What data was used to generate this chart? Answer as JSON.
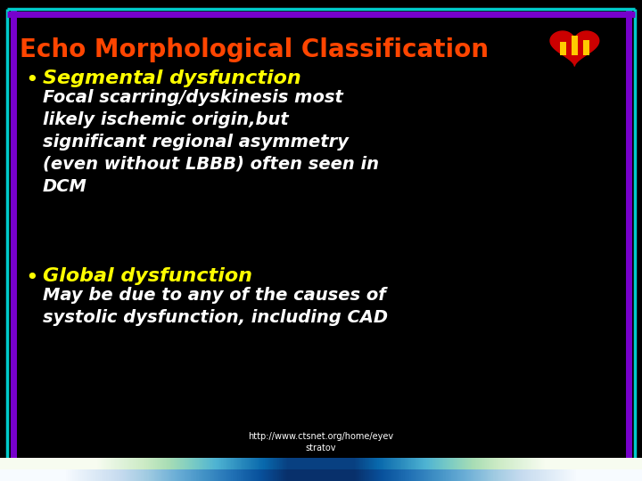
{
  "background_color": "#000000",
  "title": "Echo Morphological Classification",
  "title_color": "#FF4500",
  "title_fontsize": 20,
  "bullet_color": "#FFFF00",
  "bullet1": "Segmental dysfunction",
  "bullet1_fontsize": 16,
  "text1": "Focal scarring/dyskinesis most\nlikely ischemic origin,but\nsignificant regional asymmetry\n(even without LBBB) often seen in\nDCM",
  "text1_fontsize": 14,
  "text1_color": "#FFFFFF",
  "bullet2": "Global dysfunction",
  "bullet2_fontsize": 16,
  "text2": "May be due to any of the causes of\nsystolic dysfunction, including CAD",
  "text2_fontsize": 14,
  "text2_color": "#FFFFFF",
  "footer1": "http://www.ctsnet.org/home/eyev",
  "footer2": "stratov",
  "footer_color": "#FFFFFF",
  "footer_fontsize": 7
}
